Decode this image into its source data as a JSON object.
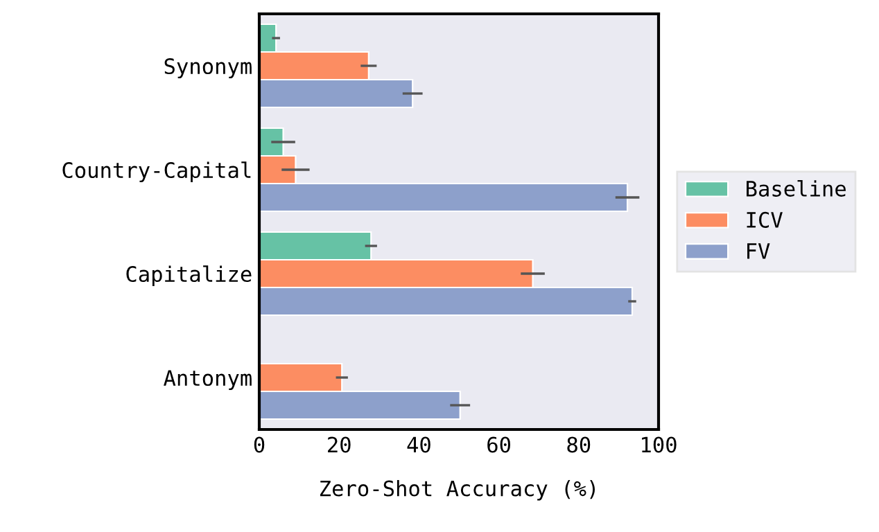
{
  "chart_data": {
    "type": "bar",
    "orientation": "horizontal",
    "xlabel": "Zero-Shot Accuracy (%)",
    "categories": [
      "Synonym",
      "Country-Capital",
      "Capitalize",
      "Antonym"
    ],
    "series": [
      {
        "name": "Baseline",
        "color": "#66c2a5",
        "values": [
          4.2,
          6.0,
          28.0,
          null
        ],
        "errors": [
          1,
          3,
          1.5,
          null
        ]
      },
      {
        "name": "ICV",
        "color": "#fc8d62",
        "values": [
          27.4,
          9.1,
          68.5,
          20.7
        ],
        "errors": [
          2,
          3.5,
          3,
          1.5
        ]
      },
      {
        "name": "FV",
        "color": "#8da0cb",
        "values": [
          38.4,
          92.2,
          93.4,
          50.3
        ],
        "errors": [
          2.5,
          3,
          1,
          2.5
        ]
      }
    ],
    "xlim": [
      0,
      100
    ],
    "xticks": [
      0,
      20,
      40,
      60,
      80,
      100
    ],
    "legend": "right",
    "grid": false
  }
}
